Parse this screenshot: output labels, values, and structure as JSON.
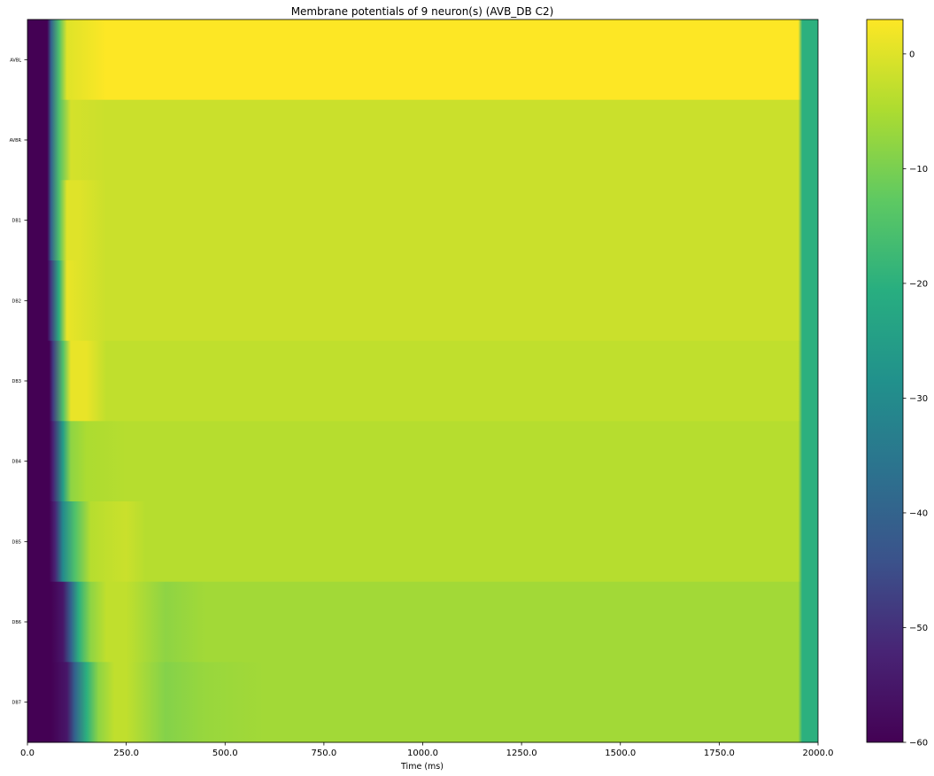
{
  "chart_data": {
    "type": "heatmap",
    "title": "Membrane potentials of 9 neuron(s) (AVB_DB C2)",
    "xlabel": "Time (ms)",
    "ylabel": "",
    "xlim": [
      0,
      2000
    ],
    "x_ticks": [
      0,
      250,
      500,
      750,
      1000,
      1250,
      1500,
      1750,
      2000
    ],
    "x_tick_labels": [
      "0.0",
      "250.0",
      "500.0",
      "750.0",
      "1000.0",
      "1250.0",
      "1500.0",
      "1750.0",
      "2000.0"
    ],
    "rows": [
      "AVBL",
      "AVBR",
      "DB1",
      "DB2",
      "DB3",
      "DB4",
      "DB5",
      "DB6",
      "DB7"
    ],
    "colorbar": {
      "colormap": "viridis",
      "vmin": -60,
      "vmax": 3,
      "ticks": [
        0,
        -10,
        -20,
        -30,
        -40,
        -50,
        -60
      ],
      "tick_labels": [
        "0",
        "−10",
        "−20",
        "−30",
        "−40",
        "−50",
        "−60"
      ]
    },
    "series": [
      {
        "name": "AVBL",
        "t": [
          0,
          50,
          60,
          80,
          100,
          200,
          1950,
          1960,
          2000
        ],
        "v": [
          -60,
          -60,
          -40,
          -15,
          0,
          3,
          3,
          -20,
          -20
        ]
      },
      {
        "name": "AVBR",
        "t": [
          0,
          50,
          60,
          80,
          110,
          200,
          1950,
          1960,
          2000
        ],
        "v": [
          -60,
          -60,
          -40,
          -15,
          -1,
          -2,
          -2,
          -20,
          -20
        ]
      },
      {
        "name": "DB1",
        "t": [
          0,
          50,
          60,
          80,
          100,
          130,
          200,
          1950,
          1960,
          2000
        ],
        "v": [
          -60,
          -60,
          -40,
          -15,
          0,
          0,
          -2,
          -2,
          -20,
          -20
        ]
      },
      {
        "name": "DB2",
        "t": [
          0,
          50,
          60,
          80,
          100,
          130,
          200,
          1950,
          1960,
          2000
        ],
        "v": [
          -60,
          -60,
          -48,
          -20,
          1,
          0,
          -2,
          -2,
          -20,
          -20
        ]
      },
      {
        "name": "DB3",
        "t": [
          0,
          55,
          65,
          90,
          110,
          150,
          200,
          1950,
          1960,
          2000
        ],
        "v": [
          -60,
          -60,
          -48,
          -15,
          1,
          1,
          -3,
          -3,
          -20,
          -20
        ]
      },
      {
        "name": "DB4",
        "t": [
          0,
          55,
          65,
          90,
          110,
          150,
          250,
          1950,
          1960,
          2000
        ],
        "v": [
          -60,
          -60,
          -52,
          -25,
          -8,
          -5,
          -4,
          -4,
          -20,
          -20
        ]
      },
      {
        "name": "DB5",
        "t": [
          0,
          55,
          70,
          90,
          120,
          160,
          200,
          250,
          300,
          400,
          1950,
          1960,
          2000
        ],
        "v": [
          -60,
          -60,
          -52,
          -30,
          -15,
          -4,
          -3,
          -2,
          -4,
          -4,
          -4,
          -20,
          -20
        ]
      },
      {
        "name": "DB6",
        "t": [
          0,
          60,
          90,
          110,
          130,
          160,
          200,
          250,
          350,
          450,
          600,
          1950,
          1960,
          2000
        ],
        "v": [
          -60,
          -60,
          -55,
          -40,
          -20,
          -8,
          -3,
          -3,
          -8,
          -6,
          -6,
          -6,
          -20,
          -20
        ]
      },
      {
        "name": "DB7",
        "t": [
          0,
          60,
          100,
          120,
          150,
          180,
          220,
          250,
          350,
          450,
          600,
          1950,
          1960,
          2000
        ],
        "v": [
          -60,
          -60,
          -55,
          -40,
          -20,
          -8,
          -3,
          -3,
          -9,
          -7,
          -6,
          -6,
          -20,
          -20
        ]
      }
    ]
  }
}
